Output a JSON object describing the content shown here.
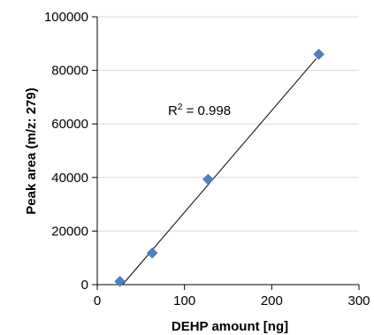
{
  "chart_data": {
    "type": "scatter",
    "xlabel": "DEHP amount [ng]",
    "ylabel": "Peak area (m/z: 279)",
    "xlim": [
      0,
      300
    ],
    "ylim": [
      0,
      100000
    ],
    "x_ticks": [
      "0",
      "100",
      "200",
      "300"
    ],
    "y_ticks": [
      "0",
      "20000",
      "40000",
      "60000",
      "80000",
      "100000"
    ],
    "grid": "horizontal",
    "legend": "none",
    "series": [
      {
        "marker": "diamond",
        "color": "#4F81BD",
        "points": [
          {
            "x": 26,
            "y": 1200
          },
          {
            "x": 63,
            "y": 11800
          },
          {
            "x": 127,
            "y": 39300
          },
          {
            "x": 254,
            "y": 86000
          }
        ]
      }
    ],
    "trendline": {
      "type": "linear",
      "color": "#000000",
      "x": [
        29,
        251
      ],
      "y": [
        0,
        84400
      ]
    },
    "annotation": {
      "label_base": "R",
      "label_sup": "2",
      "label_rest": " = 0.998"
    }
  }
}
